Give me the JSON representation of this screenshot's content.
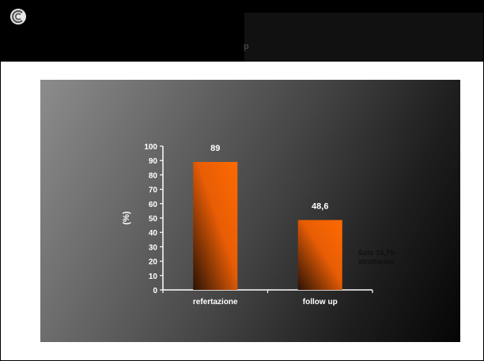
{
  "header": {
    "logo_icon": "swirl-logo-icon",
    "title_tail": "p"
  },
  "colors": {
    "bar_top": "#ff6a00",
    "bar_bottom": "#3a1a05",
    "header": "#000000"
  },
  "chart_data": {
    "type": "bar",
    "categories": [
      "refertazione",
      "follow up"
    ],
    "values": [
      89,
      48.6
    ],
    "data_labels": [
      "89",
      "48,6"
    ],
    "ylabel": "(%)",
    "ylim": [
      0,
      100
    ],
    "yticks": [
      0,
      10,
      20,
      30,
      40,
      50,
      60,
      70,
      80,
      90,
      100
    ],
    "grid": false,
    "annotations": [
      {
        "text_lines": [
          "Solo 15,7%",
          "strutturato"
        ],
        "near_category": "follow up"
      }
    ]
  }
}
